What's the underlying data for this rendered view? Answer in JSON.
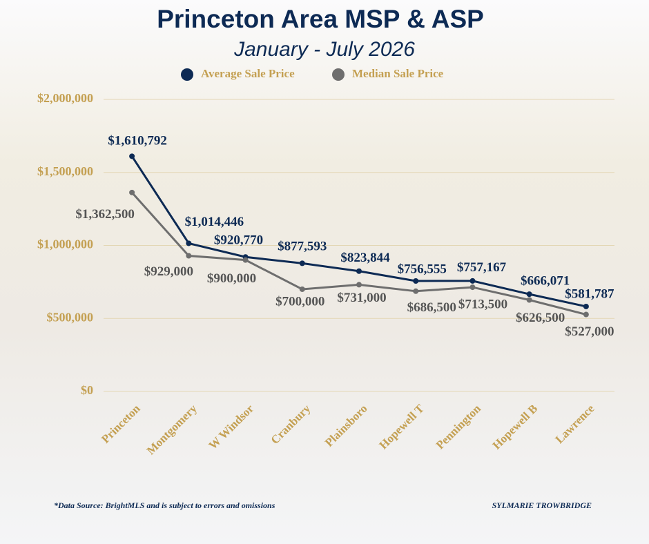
{
  "chart_data": {
    "type": "line",
    "title": "Princeton Area MSP & ASP",
    "subtitle": "January - July 2026",
    "categories": [
      "Princeton",
      "Montgomery",
      "W Windsor",
      "Cranbury",
      "Plainsboro",
      "Hopewell T",
      "Pennington",
      "Hopewell B",
      "Lawrence"
    ],
    "series": [
      {
        "name": "Average Sale Price",
        "color": "#0d2a54",
        "values": [
          1610792,
          1014446,
          920770,
          877593,
          823844,
          756555,
          757167,
          666071,
          581787
        ],
        "value_labels": [
          "$1,610,792",
          "$1,014,446",
          "$920,770",
          "$877,593",
          "$823,844",
          "$756,555",
          "$757,167",
          "$666,071",
          "$581,787"
        ]
      },
      {
        "name": "Median Sale Price",
        "color": "#6e6e6e",
        "values": [
          1362500,
          929000,
          900000,
          700000,
          731000,
          686500,
          713500,
          626500,
          527000
        ],
        "value_labels": [
          "$1,362,500",
          "$929,000",
          "$900,000",
          "$700,000",
          "$731,000",
          "$686,500",
          "$713,500",
          "$626,500",
          "$527,000"
        ]
      }
    ],
    "ylim": [
      0,
      2000000
    ],
    "yticks": [
      {
        "value": 0,
        "label": "$0"
      },
      {
        "value": 500000,
        "label": "$500,000"
      },
      {
        "value": 1000000,
        "label": "$1,000,000"
      },
      {
        "value": 1500000,
        "label": "$1,500,000"
      },
      {
        "value": 2000000,
        "label": "$2,000,000"
      }
    ],
    "grid": true,
    "legend": "top",
    "source": "*Data Source: BrightMLS and is subject to errors and omissions",
    "credit": "SYLMARIE TROWBRIDGE"
  }
}
